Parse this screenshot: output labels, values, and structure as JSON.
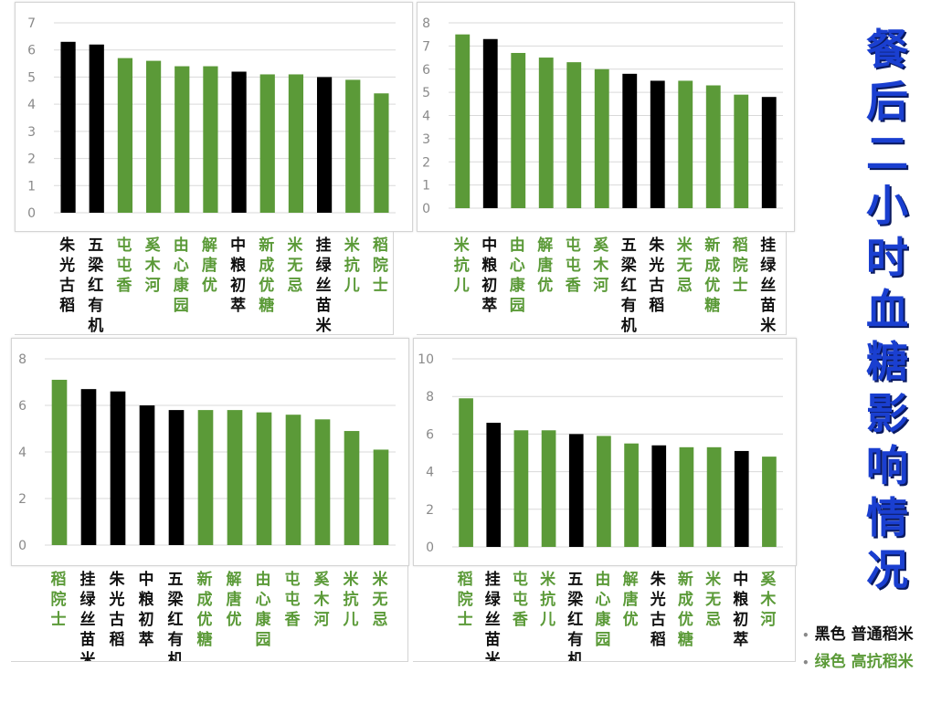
{
  "title": "餐后二小时血糖影响情况",
  "legend": {
    "black": "黑色 普通稻米",
    "green": "绿色 高抗稻米"
  },
  "colors": {
    "black": "#000000",
    "green": "#5b9a38",
    "grid": "#d9d9d9",
    "title": "#1a3fd0"
  },
  "chart_data": [
    {
      "type": "bar",
      "ylim": [
        0,
        7
      ],
      "yticks": [
        0,
        1,
        2,
        3,
        4,
        5,
        6,
        7
      ],
      "categories": [
        "朱光古稻",
        "五梁红有机",
        "屯屯香",
        "奚木河",
        "由心康园",
        "解唐优",
        "中粮初萃",
        "新成优糖",
        "米无忌",
        "挂绿丝苗米",
        "米抗儿",
        "稻院士"
      ],
      "values": [
        6.3,
        6.2,
        5.7,
        5.6,
        5.4,
        5.4,
        5.2,
        5.1,
        5.1,
        5.0,
        4.9,
        4.4
      ],
      "colors": [
        "black",
        "black",
        "green",
        "green",
        "green",
        "green",
        "black",
        "green",
        "green",
        "black",
        "green",
        "green"
      ]
    },
    {
      "type": "bar",
      "ylim": [
        0,
        8
      ],
      "yticks": [
        0,
        1,
        2,
        3,
        4,
        5,
        6,
        7,
        8
      ],
      "categories": [
        "米抗儿",
        "中粮初萃",
        "由心康园",
        "解唐优",
        "屯屯香",
        "奚木河",
        "五梁红有机",
        "朱光古稻",
        "米无忌",
        "新成优糖",
        "稻院士",
        "挂绿丝苗米"
      ],
      "values": [
        7.5,
        7.3,
        6.7,
        6.5,
        6.3,
        6.0,
        5.8,
        5.5,
        5.5,
        5.3,
        4.9,
        4.8
      ],
      "colors": [
        "green",
        "black",
        "green",
        "green",
        "green",
        "green",
        "black",
        "black",
        "green",
        "green",
        "green",
        "black"
      ]
    },
    {
      "type": "bar",
      "ylim": [
        0,
        8
      ],
      "yticks": [
        0,
        2,
        4,
        6,
        8
      ],
      "categories": [
        "稻院士",
        "挂绿丝苗米",
        "朱光古稻",
        "中粮初萃",
        "五梁红有机",
        "新成优糖",
        "解唐优",
        "由心康园",
        "屯屯香",
        "奚木河",
        "米抗儿",
        "米无忌"
      ],
      "values": [
        7.1,
        6.7,
        6.6,
        6.0,
        5.8,
        5.8,
        5.8,
        5.7,
        5.6,
        5.4,
        4.9,
        4.1
      ],
      "colors": [
        "green",
        "black",
        "black",
        "black",
        "black",
        "green",
        "green",
        "green",
        "green",
        "green",
        "green",
        "green"
      ]
    },
    {
      "type": "bar",
      "ylim": [
        0,
        10
      ],
      "yticks": [
        0,
        2,
        4,
        6,
        8,
        10
      ],
      "categories": [
        "稻院士",
        "挂绿丝苗米",
        "屯屯香",
        "米抗儿",
        "五梁红有机",
        "由心康园",
        "解唐优",
        "朱光古稻",
        "新成优糖",
        "米无忌",
        "中粮初萃",
        "奚木河"
      ],
      "values": [
        7.9,
        6.6,
        6.2,
        6.2,
        6.0,
        5.9,
        5.5,
        5.4,
        5.3,
        5.3,
        5.1,
        4.8
      ],
      "colors": [
        "green",
        "black",
        "green",
        "green",
        "black",
        "green",
        "green",
        "black",
        "green",
        "green",
        "black",
        "green"
      ]
    }
  ]
}
